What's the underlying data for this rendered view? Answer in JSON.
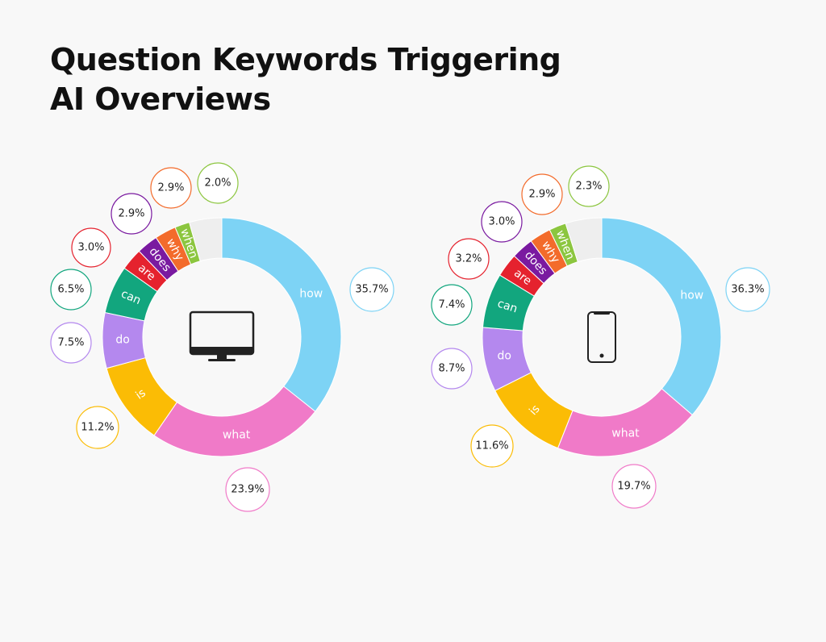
{
  "title_line1": "Question Keywords Triggering",
  "title_line2": "AI Overviews",
  "chart_data": [
    {
      "type": "pie",
      "style": "donut",
      "device_icon": "desktop-monitor-icon",
      "series": [
        {
          "name": "how",
          "value": 35.7,
          "color": "#7dd3f5"
        },
        {
          "name": "what",
          "value": 23.9,
          "color": "#f07ac8"
        },
        {
          "name": "is",
          "value": 11.2,
          "color": "#fbbc05"
        },
        {
          "name": "do",
          "value": 7.5,
          "color": "#b488ee"
        },
        {
          "name": "can",
          "value": 6.5,
          "color": "#12a67e"
        },
        {
          "name": "are",
          "value": 3.0,
          "color": "#e5222e"
        },
        {
          "name": "does",
          "value": 2.9,
          "color": "#7a1aa0"
        },
        {
          "name": "why",
          "value": 2.9,
          "color": "#f36b2b"
        },
        {
          "name": "when",
          "value": 2.0,
          "color": "#8cc63f"
        }
      ],
      "value_labels": [
        "35.7%",
        "23.9%",
        "11.2%",
        "7.5%",
        "6.5%",
        "3.0%",
        "2.9%",
        "2.9%",
        "2.0%"
      ],
      "remainder_color": "#eeeeee"
    },
    {
      "type": "pie",
      "style": "donut",
      "device_icon": "smartphone-icon",
      "series": [
        {
          "name": "how",
          "value": 36.3,
          "color": "#7dd3f5"
        },
        {
          "name": "what",
          "value": 19.7,
          "color": "#f07ac8"
        },
        {
          "name": "is",
          "value": 11.6,
          "color": "#fbbc05"
        },
        {
          "name": "do",
          "value": 8.7,
          "color": "#b488ee"
        },
        {
          "name": "can",
          "value": 7.4,
          "color": "#12a67e"
        },
        {
          "name": "are",
          "value": 3.2,
          "color": "#e5222e"
        },
        {
          "name": "does",
          "value": 3.0,
          "color": "#7a1aa0"
        },
        {
          "name": "why",
          "value": 2.9,
          "color": "#f36b2b"
        },
        {
          "name": "when",
          "value": 2.3,
          "color": "#8cc63f"
        }
      ],
      "value_labels": [
        "36.3%",
        "19.7%",
        "11.6%",
        "8.7%",
        "7.4%",
        "3.2%",
        "3.0%",
        "2.9%",
        "2.3%"
      ],
      "remainder_color": "#eeeeee"
    }
  ]
}
